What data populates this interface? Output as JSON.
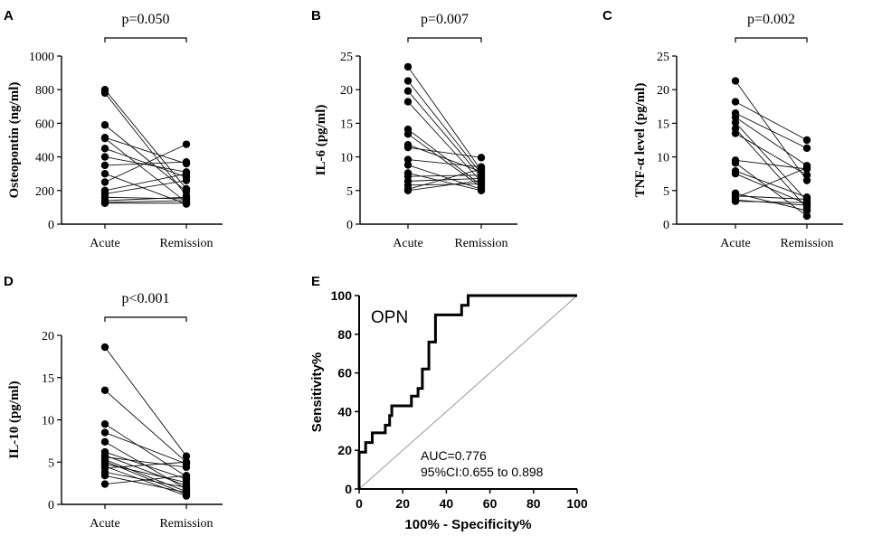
{
  "chart_data": [
    {
      "type": "scatter",
      "panel": "A",
      "ylabel": "Osteopontin (ng/ml)",
      "categories": [
        "Acute",
        "Remission"
      ],
      "ylim": [
        0,
        1000
      ],
      "yticks": [
        0,
        200,
        400,
        600,
        800,
        1000
      ],
      "pvalue": "p=0.050",
      "pairs": [
        [
          800,
          210
        ],
        [
          780,
          170
        ],
        [
          590,
          195
        ],
        [
          515,
          360
        ],
        [
          510,
          130
        ],
        [
          450,
          280
        ],
        [
          400,
          310
        ],
        [
          350,
          370
        ],
        [
          300,
          120
        ],
        [
          250,
          475
        ],
        [
          200,
          300
        ],
        [
          180,
          260
        ],
        [
          160,
          150
        ],
        [
          140,
          160
        ],
        [
          130,
          140
        ],
        [
          125,
          125
        ]
      ]
    },
    {
      "type": "scatter",
      "panel": "B",
      "ylabel": "IL-6 (pg/ml)",
      "categories": [
        "Acute",
        "Remission"
      ],
      "ylim": [
        0,
        25
      ],
      "yticks": [
        0,
        5,
        10,
        15,
        20,
        25
      ],
      "pvalue": "p=0.007",
      "pairs": [
        [
          23.4,
          8.0
        ],
        [
          21.3,
          7.5
        ],
        [
          19.8,
          7.0
        ],
        [
          18.2,
          6.3
        ],
        [
          14.1,
          5.8
        ],
        [
          13.4,
          5.5
        ],
        [
          11.8,
          7.8
        ],
        [
          11.4,
          9.9
        ],
        [
          9.6,
          8.5
        ],
        [
          8.8,
          5.2
        ],
        [
          7.6,
          5.0
        ],
        [
          7.1,
          7.3
        ],
        [
          6.4,
          6.8
        ],
        [
          5.8,
          6.0
        ],
        [
          5.2,
          8.2
        ],
        [
          5.0,
          6.5
        ]
      ]
    },
    {
      "type": "scatter",
      "panel": "C",
      "ylabel": "TNF-α level (pg/ml)",
      "categories": [
        "Acute",
        "Remission"
      ],
      "ylim": [
        0,
        25
      ],
      "yticks": [
        0,
        5,
        10,
        15,
        20,
        25
      ],
      "pvalue": "p=0.002",
      "pairs": [
        [
          21.3,
          6.5
        ],
        [
          18.2,
          12.5
        ],
        [
          16.5,
          11.3
        ],
        [
          15.9,
          8.7
        ],
        [
          15.1,
          3.5
        ],
        [
          14.2,
          2.4
        ],
        [
          13.5,
          7.3
        ],
        [
          9.5,
          8.2
        ],
        [
          9.1,
          1.2
        ],
        [
          7.9,
          4.0
        ],
        [
          7.5,
          3.0
        ],
        [
          4.6,
          2.0
        ],
        [
          4.2,
          3.7
        ],
        [
          3.9,
          8.4
        ],
        [
          3.6,
          2.8
        ],
        [
          3.4,
          3.2
        ]
      ]
    },
    {
      "type": "scatter",
      "panel": "D",
      "ylabel": "IL-10 (pg/ml)",
      "categories": [
        "Acute",
        "Remission"
      ],
      "ylim": [
        0,
        20
      ],
      "yticks": [
        0,
        5,
        10,
        15,
        20
      ],
      "pvalue": "p<0.001",
      "pairs": [
        [
          18.6,
          5.7
        ],
        [
          13.5,
          5.0
        ],
        [
          9.5,
          3.3
        ],
        [
          8.5,
          4.8
        ],
        [
          7.4,
          1.8
        ],
        [
          6.2,
          3.0
        ],
        [
          5.8,
          2.2
        ],
        [
          5.6,
          4.4
        ],
        [
          5.3,
          1.5
        ],
        [
          5.1,
          1.2
        ],
        [
          4.8,
          2.6
        ],
        [
          4.5,
          1.0
        ],
        [
          4.3,
          5.0
        ],
        [
          3.8,
          2.0
        ],
        [
          3.4,
          1.4
        ],
        [
          2.4,
          3.4
        ]
      ]
    },
    {
      "type": "line",
      "panel": "E",
      "label": "OPN",
      "xlabel": "100% - Specificity%",
      "ylabel": "Sensitivity%",
      "xlim": [
        0,
        100
      ],
      "ylim": [
        0,
        100
      ],
      "xticks": [
        0,
        20,
        40,
        60,
        80,
        100
      ],
      "yticks": [
        0,
        20,
        40,
        60,
        80,
        100
      ],
      "auc": "AUC=0.776",
      "ci": "95%CI:0.655 to 0.898",
      "roc": [
        [
          0,
          0
        ],
        [
          0,
          19
        ],
        [
          3,
          19
        ],
        [
          3,
          24
        ],
        [
          6,
          24
        ],
        [
          6,
          29
        ],
        [
          12,
          29
        ],
        [
          12,
          33
        ],
        [
          14,
          33
        ],
        [
          14,
          38
        ],
        [
          15,
          38
        ],
        [
          15,
          43
        ],
        [
          24,
          43
        ],
        [
          24,
          48
        ],
        [
          27,
          48
        ],
        [
          27,
          52
        ],
        [
          29,
          52
        ],
        [
          29,
          62
        ],
        [
          32,
          62
        ],
        [
          32,
          76
        ],
        [
          35,
          76
        ],
        [
          35,
          90
        ],
        [
          47,
          90
        ],
        [
          47,
          95
        ],
        [
          50,
          95
        ],
        [
          50,
          100
        ],
        [
          100,
          100
        ]
      ],
      "reference": [
        [
          0,
          0
        ],
        [
          100,
          100
        ]
      ]
    }
  ]
}
